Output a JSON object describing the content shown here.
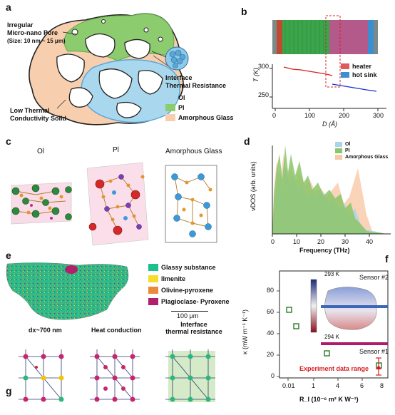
{
  "panels": {
    "a": "a",
    "b": "b",
    "c": "c",
    "d": "d",
    "e": "e",
    "f": "f",
    "g": "g"
  },
  "panel_a": {
    "pore_label_1": "Irregular",
    "pore_label_2": "Micro-nano Pore",
    "pore_label_3": "(Size: 10 nm ~ 15 μm)",
    "interface_label_1": "Interface",
    "interface_label_2": "Thermal Resistance",
    "solid_label_1": "Low Thermal",
    "solid_label_2": "Conductivity Solid",
    "legend": [
      "Ol",
      "Pl",
      "Amorphous Glass"
    ],
    "colors": {
      "ol": "#a9d8ee",
      "pl": "#8ccb6e",
      "glass": "#f8cfae",
      "phase_blue": "#5aa7d5",
      "phase_green": "#5fa84a"
    }
  },
  "panel_b": {
    "y_axis_title": "T (K)",
    "x_axis_title": "D (Å)",
    "y_ticks": [
      "300",
      "250"
    ],
    "x_ticks": [
      "0",
      "100",
      "200",
      "300"
    ],
    "legend": [
      "heater",
      "hot sink"
    ],
    "colors": {
      "heater": "#e05a5a",
      "sink": "#3b8fd1",
      "line_red": "#d42020",
      "line_blue": "#1a2fd0"
    }
  },
  "panel_c": {
    "titles": [
      "Ol",
      "Pl",
      "Amorphous Glass"
    ]
  },
  "panel_d": {
    "y_axis_title": "vDOS (arb. units)",
    "x_axis_title": "Frequency (THz)",
    "x_ticks": [
      "0",
      "10",
      "20",
      "30",
      "40"
    ],
    "legend": [
      "Ol",
      "Pl",
      "Amorphous Glass"
    ],
    "colors": {
      "ol": "#a9d3ee",
      "pl": "#8cc66a",
      "glass": "#f8c9a8"
    }
  },
  "panel_e": {
    "legend": [
      "Glassy substance",
      "Ilmenite",
      "Olivine-pyroxene",
      "Plagioclase- Pyroxene"
    ],
    "colors": [
      "#1dbf8e",
      "#f5dd2a",
      "#ea8a3a",
      "#b0206c"
    ],
    "scalebar": "100 μm"
  },
  "panel_f": {
    "y_axis_title": "κ (mW m⁻¹ K⁻¹)",
    "x_axis_title": "R_I (10⁻⁶ m² K W⁻¹)",
    "y_ticks": [
      "80",
      "60",
      "40",
      "20",
      "0"
    ],
    "x_ticks": [
      "0.01",
      "1",
      "4",
      "6",
      "8"
    ],
    "colorbar_top": "293 K",
    "colorbar_bottom": "294 K",
    "sensor_top": "Sensor #2",
    "sensor_bottom": "Sensor #1",
    "experiment_label": "Experiment data range"
  },
  "panel_g": {
    "label_1": "dx~700 nm",
    "label_2": "Heat conduction",
    "label_3_1": "Interface",
    "label_3_2": "thermal resistance"
  }
}
